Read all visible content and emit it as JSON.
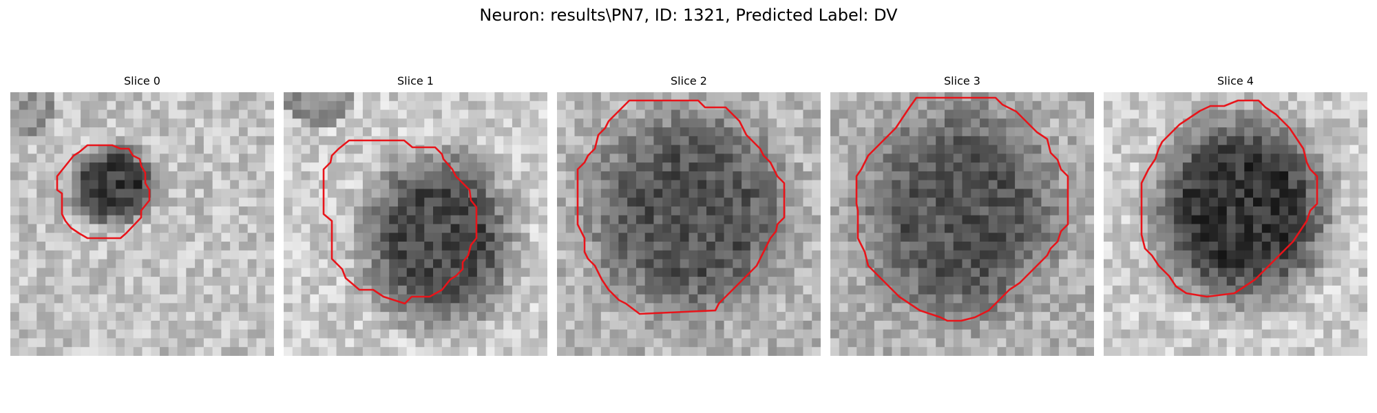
{
  "figure": {
    "title": "Neuron: results\\PN7, ID: 1321, Predicted Label: DV"
  },
  "panels": [
    {
      "title": "Slice 0"
    },
    {
      "title": "Slice 1"
    },
    {
      "title": "Slice 2"
    },
    {
      "title": "Slice 3"
    },
    {
      "title": "Slice 4"
    }
  ],
  "colors": {
    "contour": "#e8141a",
    "colormap": "grayscale"
  }
}
